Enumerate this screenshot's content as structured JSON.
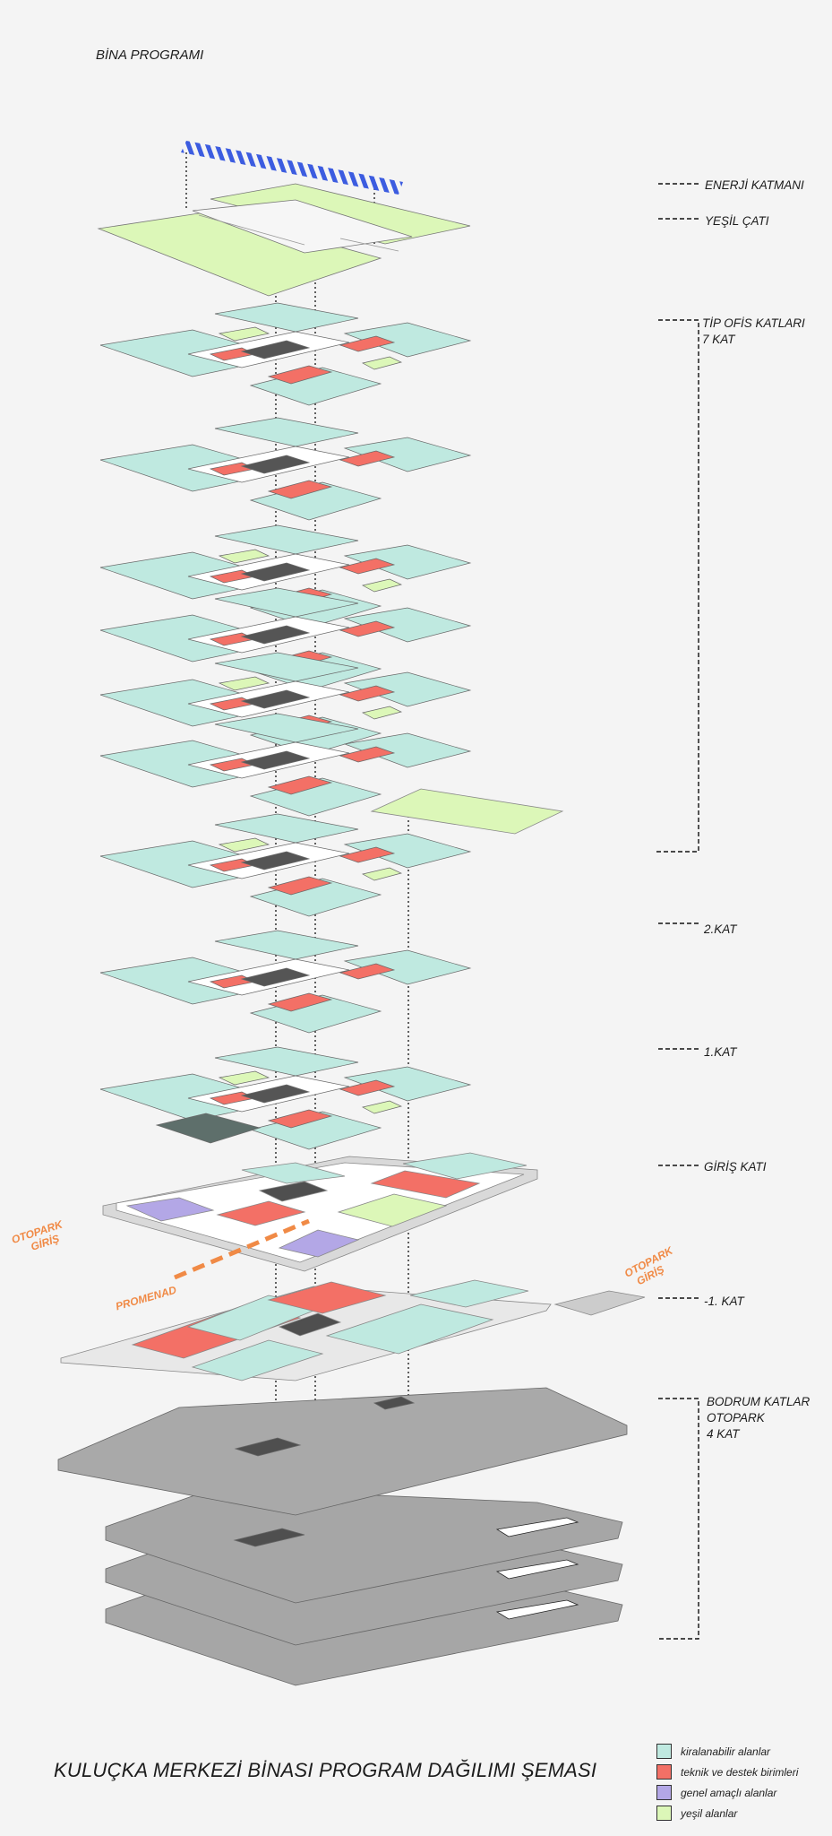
{
  "header": {
    "title": "BİNA PROGRAMI"
  },
  "floor_labels": [
    {
      "id": "energy",
      "text": "ENERJİ KATMANI"
    },
    {
      "id": "green-roof",
      "text": "YEŞİL ÇATI"
    },
    {
      "id": "office-1",
      "text": "TİP OFİS KATLARI"
    },
    {
      "id": "office-2",
      "text": "7 KAT"
    },
    {
      "id": "floor2",
      "text": "2.KAT"
    },
    {
      "id": "floor1",
      "text": "1.KAT"
    },
    {
      "id": "ground",
      "text": "GİRİŞ KATI"
    },
    {
      "id": "minus1",
      "text": "-1. KAT"
    },
    {
      "id": "basement-1",
      "text": "BODRUM KATLAR"
    },
    {
      "id": "basement-2",
      "text": "OTOPARK"
    },
    {
      "id": "basement-3",
      "text": "4 KAT"
    }
  ],
  "annotations": {
    "parking_left_1": "OTOPARK",
    "parking_left_2": "GİRİŞ",
    "parking_right_1": "OTOPARK",
    "parking_right_2": "GİRİŞ",
    "promenade": "PROMENAD"
  },
  "main_title": "KULUÇKA MERKEZİ BİNASI PROGRAM DAĞILIMI ŞEMASI",
  "legend": [
    {
      "label": "kiralanabilir alanlar",
      "color": "#bfe9e0"
    },
    {
      "label": "teknik ve destek birimleri",
      "color": "#f37066"
    },
    {
      "label": "genel amaçlı alanlar",
      "color": "#b3a7e6"
    },
    {
      "label": "yeşil alanlar",
      "color": "#dcf7b8"
    }
  ],
  "colors": {
    "rentable": "#bfe9e0",
    "technical": "#f37066",
    "general": "#b3a7e6",
    "green": "#dcf7b8",
    "core": "#555555",
    "parking": "#a6a6a6",
    "energy": "#3c5ce0",
    "accent_orange": "#f08a46"
  }
}
